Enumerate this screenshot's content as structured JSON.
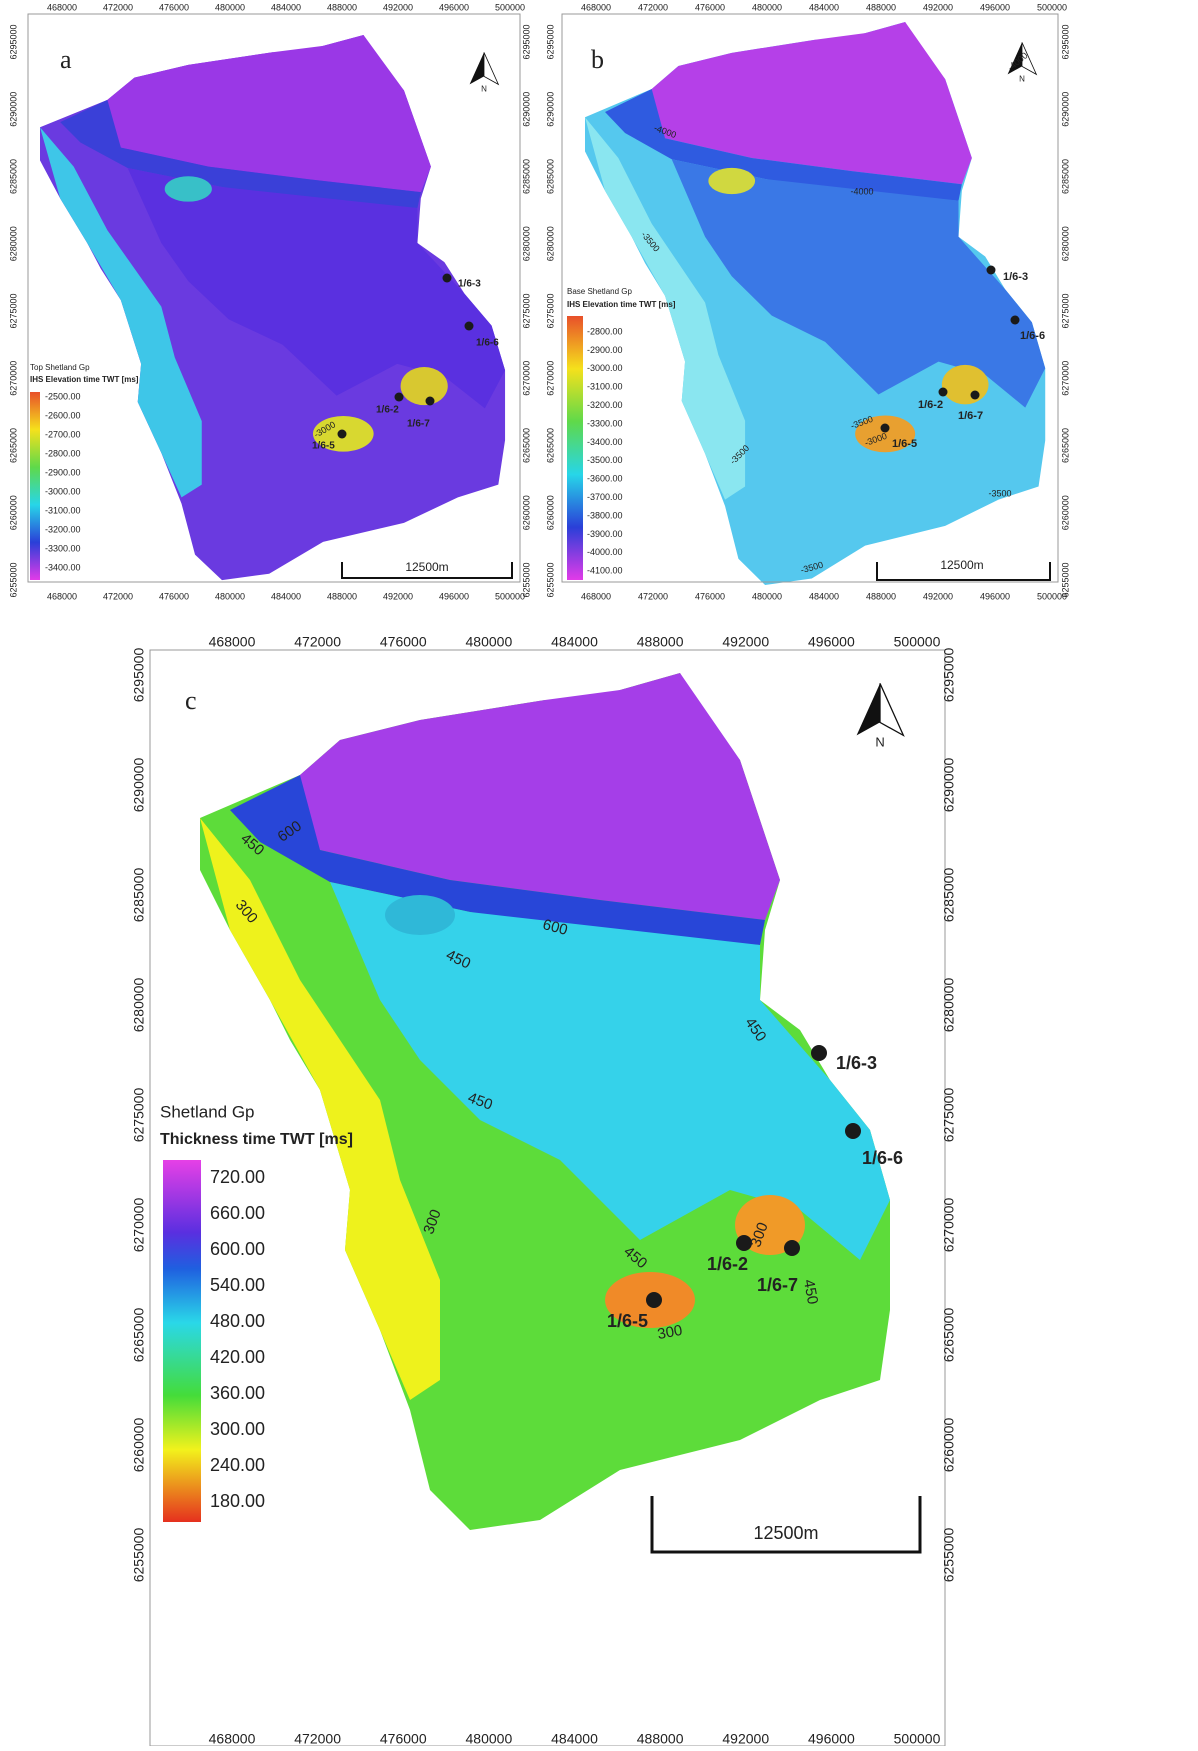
{
  "panels": [
    {
      "label": "a",
      "x_ticks": [
        468000,
        472000,
        476000,
        480000,
        484000,
        488000,
        492000,
        496000,
        500000
      ],
      "y_ticks": [
        6295000,
        6290000,
        6285000,
        6280000,
        6275000,
        6270000,
        6265000,
        6260000,
        6255000
      ],
      "north": "N",
      "scale_bar": "12500m",
      "legend": {
        "title": "Top Shetland Gp",
        "subtitle": "IHS Elevation time TWT [ms]",
        "entries": [
          "-2500.00",
          "-2600.00",
          "-2700.00",
          "-2800.00",
          "-2900.00",
          "-3000.00",
          "-3100.00",
          "-3200.00",
          "-3300.00",
          "-3400.00"
        ]
      },
      "wells": [
        "1/6-3",
        "1/6-6",
        "1/6-2",
        "1/6-7",
        "1/6-5"
      ],
      "contour_labels": [
        "-3000"
      ]
    },
    {
      "label": "b",
      "x_ticks": [
        468000,
        472000,
        476000,
        480000,
        484000,
        488000,
        492000,
        496000,
        500000
      ],
      "y_ticks": [
        6295000,
        6290000,
        6285000,
        6280000,
        6275000,
        6270000,
        6265000,
        6260000,
        6255000
      ],
      "north": "N",
      "scale_bar": "12500m",
      "legend": {
        "title": "Base Shetland Gp",
        "subtitle": "IHS Elevation time TWT [ms]",
        "entries": [
          "-2800.00",
          "-2900.00",
          "-3000.00",
          "-3100.00",
          "-3200.00",
          "-3300.00",
          "-3400.00",
          "-3500.00",
          "-3600.00",
          "-3700.00",
          "-3800.00",
          "-3900.00",
          "-4000.00",
          "-4100.00"
        ]
      },
      "wells": [
        "1/6-3",
        "1/6-6",
        "1/6-2",
        "1/6-7",
        "1/6-5"
      ],
      "contour_labels": [
        "-4000",
        "-4000",
        "-4000",
        "-3500",
        "-3500",
        "-3500",
        "-3000",
        "-3500",
        "-3500"
      ]
    },
    {
      "label": "c",
      "x_ticks": [
        468000,
        472000,
        476000,
        480000,
        484000,
        488000,
        492000,
        496000,
        500000
      ],
      "y_ticks": [
        6295000,
        6290000,
        6285000,
        6280000,
        6275000,
        6270000,
        6265000,
        6260000,
        6255000
      ],
      "north": "N",
      "scale_bar": "12500m",
      "legend": {
        "title": "Shetland Gp",
        "subtitle": "Thickness time TWT [ms]",
        "entries": [
          "720.00",
          "660.00",
          "600.00",
          "540.00",
          "480.00",
          "420.00",
          "360.00",
          "300.00",
          "240.00",
          "180.00"
        ]
      },
      "wells": [
        "1/6-3",
        "1/6-6",
        "1/6-2",
        "1/6-7",
        "1/6-5"
      ],
      "contour_labels": [
        "450",
        "600",
        "300",
        "450",
        "600",
        "450",
        "450",
        "300",
        "450",
        "300",
        "450",
        "300"
      ]
    }
  ]
}
